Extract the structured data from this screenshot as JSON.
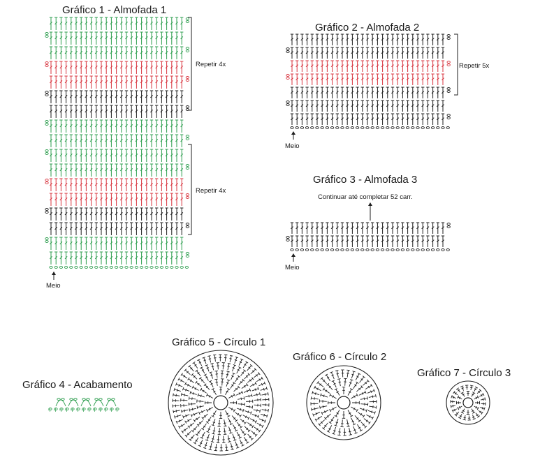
{
  "colors": {
    "green": "#2e9e4f",
    "red": "#d8353f",
    "black": "#1e1e1e"
  },
  "graph1": {
    "title": "Gráfico 1 - Almofada 1",
    "repeat_top": "Repetir 4x",
    "repeat_bottom": "Repetir 4x",
    "start_label": "Meio",
    "row_colors_top_to_bottom": [
      "green",
      "green",
      "green",
      "red",
      "red",
      "black",
      "black",
      "green",
      "green",
      "green",
      "green",
      "red",
      "red",
      "black",
      "black",
      "green",
      "green"
    ]
  },
  "graph2": {
    "title": "Gráfico 2 - Almofada 2",
    "repeat": "Repetir 5x",
    "start_label": "Meio",
    "row_colors_top_to_bottom": [
      "black",
      "black",
      "red",
      "red",
      "black",
      "black",
      "black"
    ]
  },
  "graph3": {
    "title": "Gráfico 3 - Almofada 3",
    "note": "Continuar até completar 52 carr.",
    "start_label": "Meio",
    "row_colors_top_to_bottom": [
      "black",
      "black"
    ]
  },
  "graph4": {
    "title": "Gráfico 4 - Acabamento"
  },
  "graph5": {
    "title": "Gráfico 5 - Círculo 1"
  },
  "graph6": {
    "title": "Gráfico 6 - Círculo 2"
  },
  "graph7": {
    "title": "Gráfico 7 - Círculo 3"
  }
}
